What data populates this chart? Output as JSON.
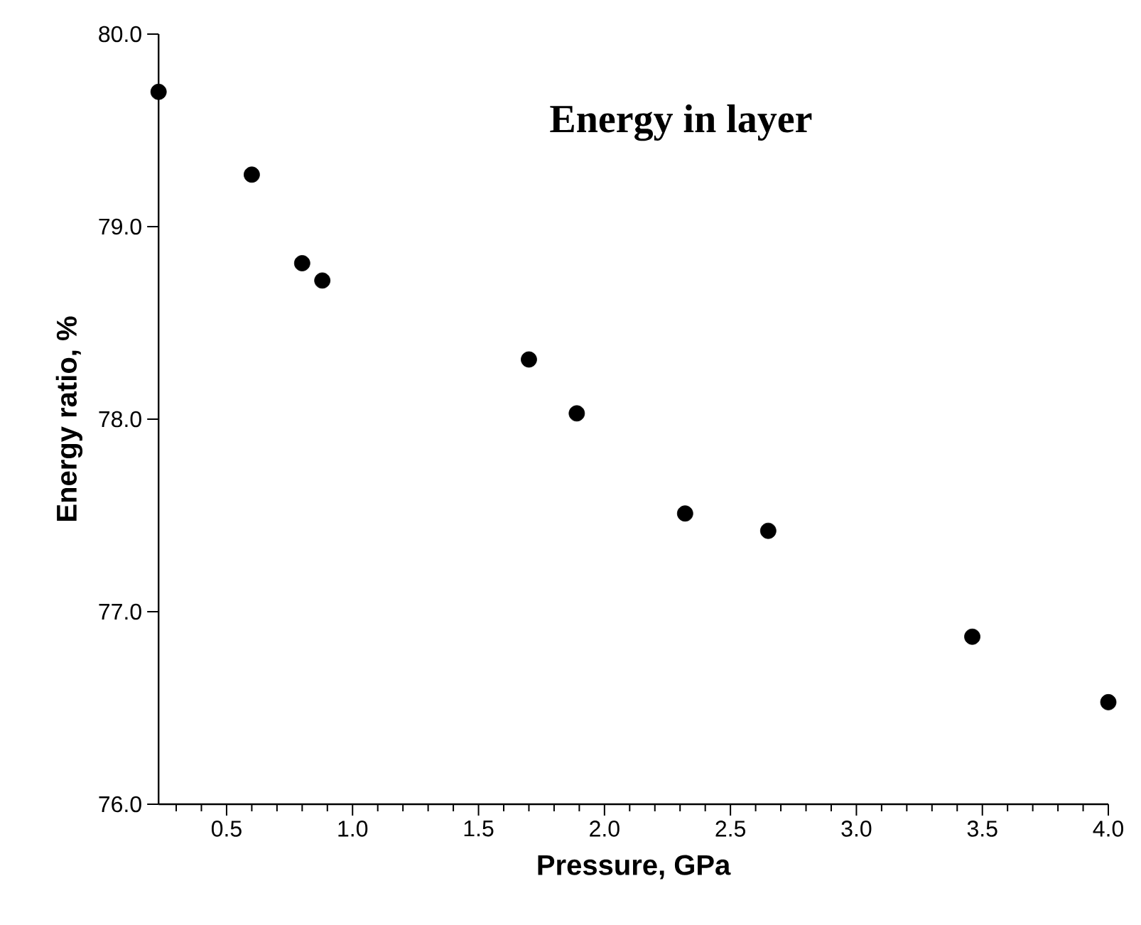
{
  "chart_data": {
    "type": "scatter",
    "title": "Energy in layer",
    "xlabel": "Pressure, GPa",
    "ylabel": "Energy ratio, %",
    "x": [
      0.23,
      0.6,
      0.8,
      0.88,
      1.7,
      1.89,
      2.32,
      2.65,
      3.46,
      4.0
    ],
    "series": [
      {
        "color": "#000000",
        "values": [
          79.7,
          79.27,
          78.81,
          78.72,
          78.31,
          78.03,
          77.51,
          77.42,
          76.87,
          76.53
        ]
      }
    ],
    "xlim": [
      0.23,
      4.0
    ],
    "ylim": [
      76,
      80
    ],
    "xticks": [
      {
        "value": 0.3,
        "label": null
      },
      {
        "value": 0.4,
        "label": null
      },
      {
        "value": 0.5,
        "label": "0.5"
      },
      {
        "value": 0.6,
        "label": null
      },
      {
        "value": 0.7,
        "label": null
      },
      {
        "value": 0.8,
        "label": null
      },
      {
        "value": 0.9,
        "label": null
      },
      {
        "value": 1.0,
        "label": "1.0"
      },
      {
        "value": 1.1,
        "label": null
      },
      {
        "value": 1.2,
        "label": null
      },
      {
        "value": 1.3,
        "label": null
      },
      {
        "value": 1.4,
        "label": null
      },
      {
        "value": 1.5,
        "label": "1.5"
      },
      {
        "value": 1.6,
        "label": null
      },
      {
        "value": 1.7,
        "label": null
      },
      {
        "value": 1.8,
        "label": null
      },
      {
        "value": 1.9,
        "label": null
      },
      {
        "value": 2.0,
        "label": "2.0"
      },
      {
        "value": 2.1,
        "label": null
      },
      {
        "value": 2.2,
        "label": null
      },
      {
        "value": 2.3,
        "label": null
      },
      {
        "value": 2.4,
        "label": null
      },
      {
        "value": 2.5,
        "label": "2.5"
      },
      {
        "value": 2.6,
        "label": null
      },
      {
        "value": 2.7,
        "label": null
      },
      {
        "value": 2.8,
        "label": null
      },
      {
        "value": 2.9,
        "label": null
      },
      {
        "value": 3.0,
        "label": "3.0"
      },
      {
        "value": 3.1,
        "label": null
      },
      {
        "value": 3.2,
        "label": null
      },
      {
        "value": 3.3,
        "label": null
      },
      {
        "value": 3.4,
        "label": null
      },
      {
        "value": 3.5,
        "label": "3.5"
      },
      {
        "value": 3.6,
        "label": null
      },
      {
        "value": 3.7,
        "label": null
      },
      {
        "value": 3.8,
        "label": null
      },
      {
        "value": 3.9,
        "label": null
      },
      {
        "value": 4.0,
        "label": "4.0"
      }
    ],
    "yticks": [
      {
        "value": 76,
        "label": "76.0"
      },
      {
        "value": 77,
        "label": "77.0"
      },
      {
        "value": 78,
        "label": "78.0"
      },
      {
        "value": 79,
        "label": "79.0"
      },
      {
        "value": 80,
        "label": "80.0"
      }
    ],
    "marker": "circle",
    "grid": false
  }
}
